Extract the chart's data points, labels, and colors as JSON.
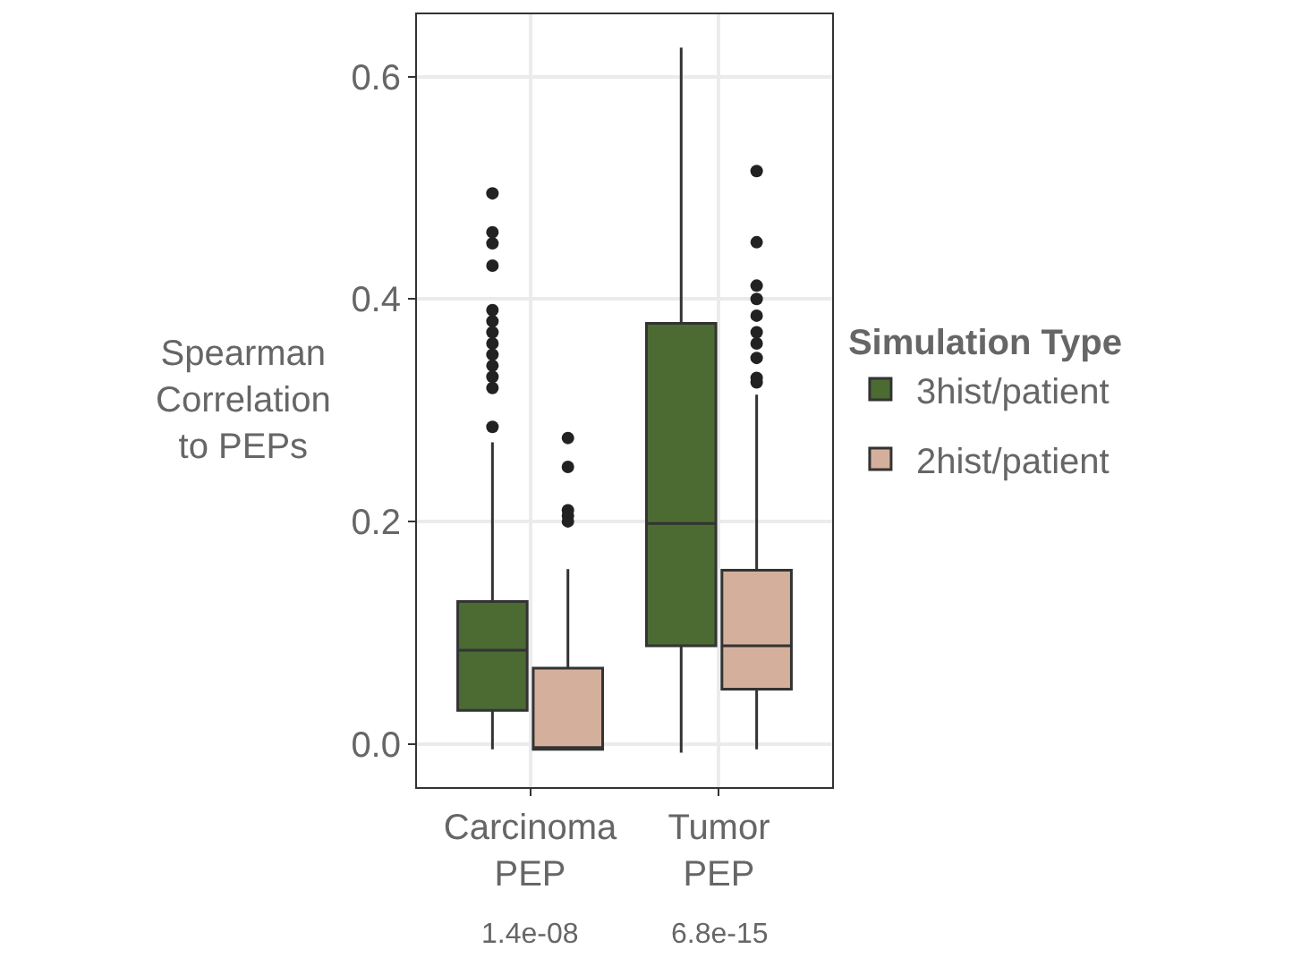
{
  "chart_data": {
    "type": "box",
    "categories": [
      "Carcinoma PEP",
      "Tumor PEP"
    ],
    "ylabel": "Spearman Correlation to PEPs",
    "legend_title": "Simulation Type",
    "legend": "right",
    "grid": true,
    "ylim": [
      -0.039,
      0.656
    ],
    "yticks": [
      {
        "value": 0,
        "label": "0.0"
      },
      0.2,
      0.4,
      0.6
    ],
    "annotations": [
      "1.4e-08",
      "6.8e-15"
    ],
    "series": [
      {
        "name": "3hist/patient",
        "color": "#4b6b33",
        "boxes": [
          {
            "low": -0.005,
            "q1": 0.03,
            "median": 0.084,
            "q3": 0.128,
            "high": 0.271,
            "outliers": [
              0.285,
              0.32,
              0.33,
              0.34,
              0.35,
              0.36,
              0.37,
              0.38,
              0.39,
              0.43,
              0.45,
              0.46,
              0.495
            ]
          },
          {
            "low": -0.008,
            "q1": 0.088,
            "median": 0.198,
            "q3": 0.378,
            "high": 0.626
          }
        ]
      },
      {
        "name": "2hist/patient",
        "color": "#d4b09c",
        "boxes": [
          {
            "low": -0.005,
            "q1": -0.005,
            "median": -0.004,
            "q3": 0.068,
            "high": 0.157,
            "outliers": [
              0.2,
              0.205,
              0.21,
              0.249,
              0.275
            ]
          },
          {
            "low": -0.005,
            "q1": 0.049,
            "median": 0.088,
            "q3": 0.156,
            "high": 0.314,
            "outliers": [
              0.325,
              0.329,
              0.347,
              0.36,
              0.37,
              0.385,
              0.4,
              0.412,
              0.451,
              0.515
            ]
          }
        ]
      }
    ]
  }
}
